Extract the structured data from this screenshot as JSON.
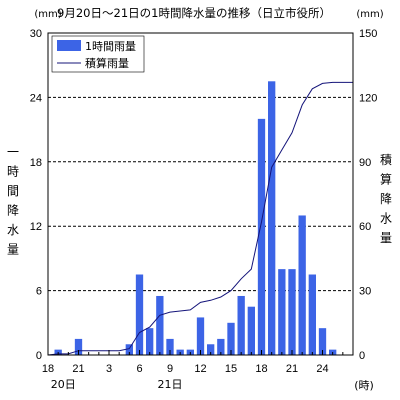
{
  "chart_data": {
    "type": "bar",
    "title": "9月20日～21日の1時間降水量の推移（日立市役所）",
    "y_unit_left": "(mm)",
    "y_unit_right": "(mm)",
    "x_unit": "(時)",
    "ylabel_left": "一時間降水量",
    "ylabel_right": "積算降水量",
    "ylim_left": [
      0,
      30
    ],
    "ylim_right": [
      0,
      150
    ],
    "yticks_left": [
      "0",
      "6",
      "12",
      "18",
      "24",
      "30"
    ],
    "yticks_right": [
      "0",
      "30",
      "60",
      "90",
      "120",
      "150"
    ],
    "grid": "horizontal dashed at 6, 12, 18, 24",
    "xlim_hours": [
      18,
      48
    ],
    "x_tick_labels": [
      "18",
      "21",
      "3",
      "6",
      "9",
      "12",
      "15",
      "18",
      "21",
      "24"
    ],
    "date_labels": [
      "20日",
      "21日"
    ],
    "legend": {
      "position": "top-left",
      "entries": [
        "1時間雨量",
        "積算雨量"
      ]
    },
    "colors": {
      "bars": "#3c64e6",
      "line": "#14147a",
      "grid": "#000000"
    },
    "bars": {
      "name": "1時間雨量",
      "hour": [
        19,
        20,
        21,
        22,
        23,
        24,
        25,
        26,
        27,
        28,
        29,
        30,
        31,
        32,
        33,
        34,
        35,
        36,
        37,
        38,
        39,
        40,
        41,
        42,
        43,
        44,
        45,
        46,
        47
      ],
      "values": [
        0.5,
        0,
        1.5,
        0,
        0,
        0,
        0,
        1,
        7.5,
        2.5,
        5.5,
        1.5,
        0.5,
        0.5,
        3.5,
        1,
        1.5,
        3,
        5.5,
        4.5,
        22,
        25.5,
        8,
        8,
        13,
        7.5,
        2.5,
        0.5,
        0
      ]
    },
    "line": {
      "name": "積算雨量",
      "hour": [
        18,
        19,
        20,
        21,
        22,
        23,
        24,
        25,
        26,
        27,
        28,
        29,
        30,
        31,
        32,
        33,
        34,
        35,
        36,
        37,
        38,
        39,
        40,
        41,
        42,
        43,
        44,
        45,
        46,
        47,
        48
      ],
      "values": [
        0,
        0.5,
        0.5,
        2,
        2,
        2,
        2,
        2,
        3,
        10.5,
        13,
        18.5,
        20,
        20.5,
        21,
        24.5,
        25.5,
        27,
        30,
        35.5,
        40,
        62,
        87.5,
        95.5,
        103.5,
        116.5,
        124,
        126.5,
        127,
        127,
        127
      ]
    }
  }
}
